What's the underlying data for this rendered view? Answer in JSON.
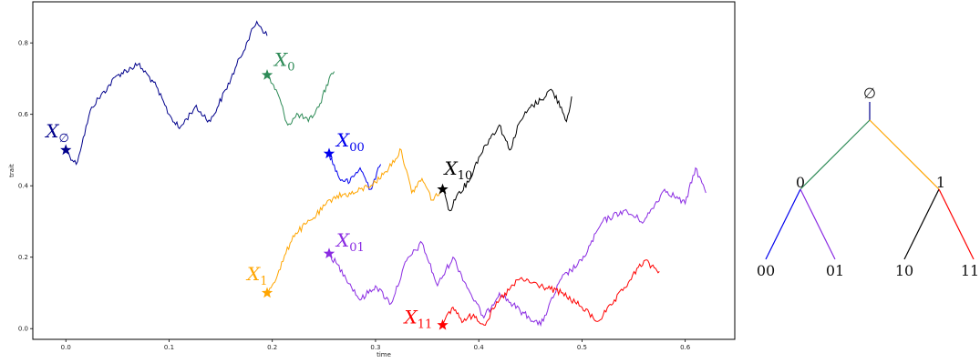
{
  "chart_data": {
    "type": "line",
    "title": "",
    "xlabel": "time",
    "ylabel": "trait",
    "xlim": [
      -0.032,
      0.648
    ],
    "ylim": [
      -0.03,
      0.915
    ],
    "x_ticks": [
      0.0,
      0.1,
      0.2,
      0.3,
      0.4,
      0.5,
      0.6
    ],
    "x_tick_labels": [
      "0.0",
      "0.1",
      "0.2",
      "0.3",
      "0.4",
      "0.5",
      "0.6"
    ],
    "y_ticks": [
      0.0,
      0.2,
      0.4,
      0.6,
      0.8
    ],
    "y_tick_labels": [
      "0.0",
      "0.2",
      "0.4",
      "0.6",
      "0.8"
    ],
    "grid": false,
    "series": [
      {
        "name": "",
        "color": "#00008b",
        "x": [
          0.0,
          0.01,
          0.025,
          0.05,
          0.07,
          0.085,
          0.1,
          0.11,
          0.125,
          0.14,
          0.16,
          0.175,
          0.185,
          0.195
        ],
        "y": [
          0.5,
          0.46,
          0.62,
          0.71,
          0.74,
          0.69,
          0.6,
          0.56,
          0.62,
          0.58,
          0.7,
          0.8,
          0.86,
          0.82
        ]
      },
      {
        "name": "",
        "color": "#2e8b57",
        "x": [
          0.195,
          0.205,
          0.215,
          0.225,
          0.235,
          0.245,
          0.255,
          0.26
        ],
        "y": [
          0.71,
          0.66,
          0.57,
          0.6,
          0.58,
          0.62,
          0.7,
          0.72
        ]
      },
      {
        "name": "",
        "color": "#0000ee",
        "x": [
          0.255,
          0.265,
          0.275,
          0.285,
          0.295,
          0.305
        ],
        "y": [
          0.49,
          0.42,
          0.41,
          0.45,
          0.39,
          0.46
        ]
      },
      {
        "name": "",
        "color": "#8a2be2",
        "x": [
          0.255,
          0.27,
          0.285,
          0.3,
          0.315,
          0.33,
          0.345,
          0.36,
          0.375,
          0.39,
          0.405,
          0.42,
          0.44,
          0.46,
          0.48,
          0.5,
          0.52,
          0.54,
          0.56,
          0.58,
          0.6,
          0.61,
          0.62
        ],
        "y": [
          0.21,
          0.15,
          0.08,
          0.12,
          0.07,
          0.19,
          0.24,
          0.12,
          0.2,
          0.11,
          0.03,
          0.1,
          0.05,
          0.01,
          0.14,
          0.19,
          0.3,
          0.33,
          0.3,
          0.39,
          0.35,
          0.45,
          0.38
        ]
      },
      {
        "name": "",
        "color": "#ffa500",
        "x": [
          0.195,
          0.205,
          0.22,
          0.24,
          0.26,
          0.28,
          0.3,
          0.31,
          0.325,
          0.335,
          0.345,
          0.355,
          0.365
        ],
        "y": [
          0.1,
          0.15,
          0.26,
          0.31,
          0.37,
          0.38,
          0.41,
          0.44,
          0.5,
          0.38,
          0.42,
          0.36,
          0.39
        ]
      },
      {
        "name": "",
        "color": "#000000",
        "x": [
          0.365,
          0.372,
          0.38,
          0.39,
          0.4,
          0.41,
          0.42,
          0.43,
          0.44,
          0.45,
          0.46,
          0.47,
          0.48,
          0.485,
          0.49
        ],
        "y": [
          0.39,
          0.33,
          0.38,
          0.41,
          0.48,
          0.53,
          0.57,
          0.5,
          0.58,
          0.62,
          0.64,
          0.67,
          0.62,
          0.58,
          0.65
        ]
      },
      {
        "name": "",
        "color": "#ff0000",
        "x": [
          0.365,
          0.375,
          0.385,
          0.395,
          0.405,
          0.42,
          0.44,
          0.46,
          0.48,
          0.5,
          0.515,
          0.53,
          0.545,
          0.56,
          0.57,
          0.575
        ],
        "y": [
          0.01,
          0.06,
          0.02,
          0.04,
          0.01,
          0.08,
          0.14,
          0.12,
          0.1,
          0.06,
          0.02,
          0.07,
          0.13,
          0.19,
          0.17,
          0.16
        ]
      }
    ],
    "markers": [
      {
        "x": 0.0,
        "y": 0.5,
        "color": "#00008b",
        "label": "X",
        "sub": "∅"
      },
      {
        "x": 0.195,
        "y": 0.71,
        "color": "#2e8b57",
        "label": "X",
        "sub": "0"
      },
      {
        "x": 0.255,
        "y": 0.49,
        "color": "#0000ee",
        "label": "X",
        "sub": "00"
      },
      {
        "x": 0.255,
        "y": 0.21,
        "color": "#8a2be2",
        "label": "X",
        "sub": "01"
      },
      {
        "x": 0.195,
        "y": 0.1,
        "color": "#ffa500",
        "label": "X",
        "sub": "1"
      },
      {
        "x": 0.365,
        "y": 0.39,
        "color": "#000000",
        "label": "X",
        "sub": "10"
      },
      {
        "x": 0.365,
        "y": 0.01,
        "color": "#ff0000",
        "label": "X",
        "sub": "11"
      }
    ]
  },
  "tree": {
    "root_label": "∅",
    "nodes": [
      {
        "id": "0",
        "label": "0"
      },
      {
        "id": "1",
        "label": "1"
      },
      {
        "id": "00",
        "label": "00"
      },
      {
        "id": "01",
        "label": "01"
      },
      {
        "id": "10",
        "label": "10"
      },
      {
        "id": "11",
        "label": "11"
      }
    ],
    "edge_colors": {
      "root": "#00008b",
      "0": "#2e8b57",
      "1": "#ffa500",
      "00": "#0000ee",
      "01": "#8a2be2",
      "10": "#000000",
      "11": "#ff0000"
    }
  }
}
